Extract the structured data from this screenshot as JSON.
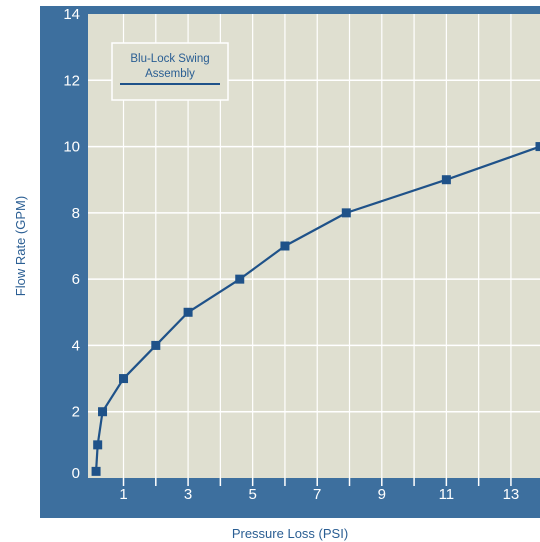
{
  "chart_data": {
    "type": "line",
    "title": "",
    "xlabel": "Pressure Loss (PSI)",
    "ylabel": "Flow Rate (GPM)",
    "xlim": [
      -0.1,
      13.9
    ],
    "ylim": [
      0,
      14
    ],
    "x_ticks": [
      1,
      3,
      5,
      7,
      9,
      11,
      13
    ],
    "y_ticks": [
      0,
      2,
      4,
      6,
      8,
      10,
      12,
      14
    ],
    "grid": true,
    "legend_position": "top-left",
    "series": [
      {
        "name": "Blu-Lock Swing Assembly",
        "color": "#1f5289",
        "x": [
          0.15,
          0.2,
          0.35,
          1.0,
          2.0,
          3.0,
          4.6,
          6.0,
          7.9,
          11.0,
          13.9
        ],
        "y": [
          0.2,
          1.0,
          2.0,
          3.0,
          4.0,
          5.0,
          6.0,
          7.0,
          8.0,
          9.0,
          10.0
        ]
      }
    ]
  },
  "colors": {
    "frame": "#3d6f9e",
    "plot_background": "#dfdfd0",
    "grid": "#ffffff",
    "series": "#1f5289",
    "axis_title": "#2a5e93"
  }
}
